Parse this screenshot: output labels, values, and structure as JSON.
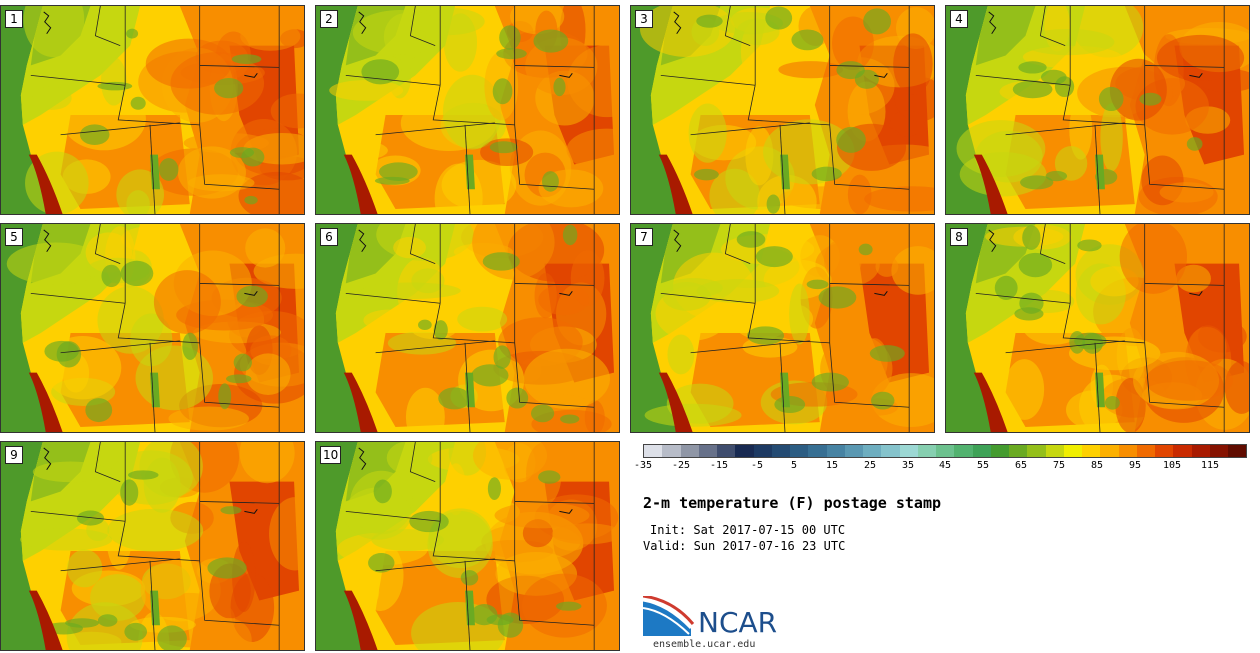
{
  "panels": [
    {
      "label": "1"
    },
    {
      "label": "2"
    },
    {
      "label": "3"
    },
    {
      "label": "4"
    },
    {
      "label": "5"
    },
    {
      "label": "6"
    },
    {
      "label": "7"
    },
    {
      "label": "8"
    },
    {
      "label": "9"
    },
    {
      "label": "10"
    }
  ],
  "colorbar": {
    "colors": [
      "#dde0e8",
      "#b7bcc8",
      "#8f96a6",
      "#67718a",
      "#3f4d6e",
      "#182a52",
      "#1d3a63",
      "#244b73",
      "#2c5d83",
      "#376f93",
      "#4783a3",
      "#5a98b2",
      "#6eaec0",
      "#85c3cc",
      "#9cd8d4",
      "#86cfb0",
      "#6cc18e",
      "#52b26f",
      "#3ea257",
      "#449b2f",
      "#6aaa22",
      "#94bf1a",
      "#c6d710",
      "#f0ee00",
      "#fed000",
      "#fcb000",
      "#f88e00",
      "#f06a00",
      "#e14500",
      "#c92a00",
      "#a81a00",
      "#851200",
      "#600c00"
    ],
    "ticks": [
      "-35",
      "-25",
      "-15",
      "-5",
      "5",
      "15",
      "25",
      "35",
      "45",
      "55",
      "65",
      "75",
      "85",
      "95",
      "105",
      "115"
    ]
  },
  "title": "2-m temperature (F) postage stamp",
  "init": "Init: Sat 2017-07-15 00 UTC",
  "valid": "Valid: Sun 2017-07-16 23 UTC",
  "logo": {
    "text": "NCAR",
    "url": "ensemble.ucar.edu"
  }
}
